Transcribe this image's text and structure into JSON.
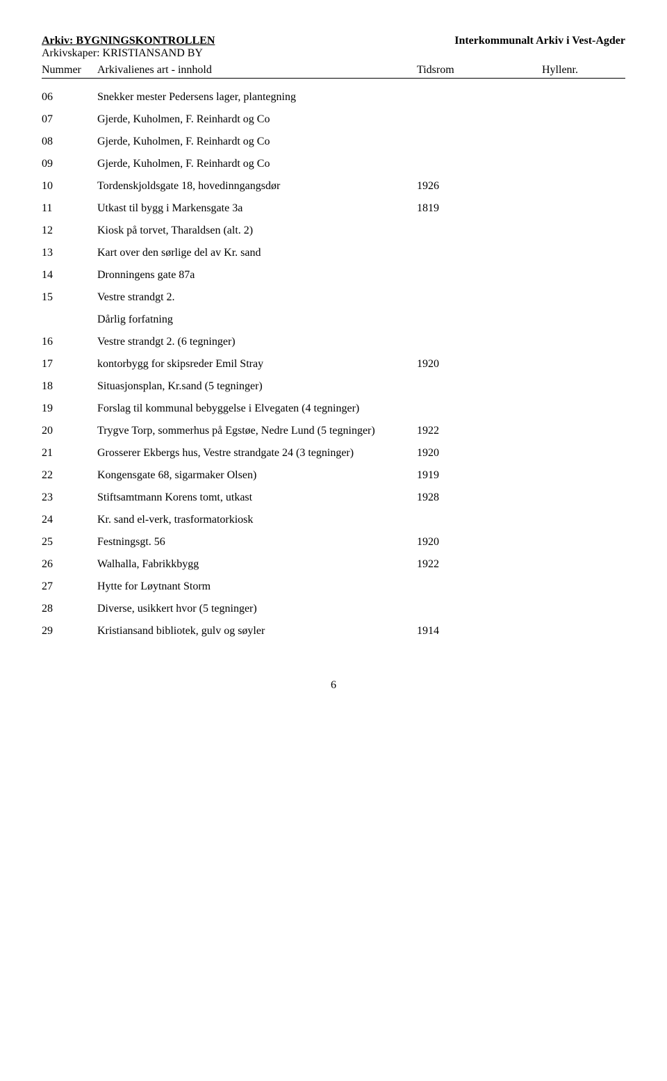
{
  "header": {
    "archive_label": "Arkiv:",
    "archive_value": "BYGNINGSKONTROLLEN",
    "creator_label": "Arkivskaper:",
    "creator_value": "KRISTIANSAND BY",
    "org": "Interkommunalt Arkiv i Vest-Agder"
  },
  "columns": {
    "nummer": "Nummer",
    "art": "Arkivalienes art - innhold",
    "tidsrom": "Tidsrom",
    "hyllenr": "Hyllenr."
  },
  "rows": [
    {
      "num": "06",
      "art": "Snekker mester Pedersens lager, plantegning",
      "tid": ""
    },
    {
      "num": "07",
      "art": "Gjerde, Kuholmen, F. Reinhardt og Co",
      "tid": ""
    },
    {
      "num": "08",
      "art": "Gjerde, Kuholmen, F. Reinhardt og Co",
      "tid": ""
    },
    {
      "num": "09",
      "art": "Gjerde, Kuholmen, F. Reinhardt og Co",
      "tid": ""
    },
    {
      "num": "10",
      "art": "Tordenskjoldsgate 18, hovedinngangsdør",
      "tid": "1926"
    },
    {
      "num": "11",
      "art": "Utkast til bygg i Markensgate 3a",
      "tid": "1819"
    },
    {
      "num": "12",
      "art": "Kiosk på torvet, Tharaldsen (alt. 2)",
      "tid": ""
    },
    {
      "num": "13",
      "art": "Kart over den sørlige del av Kr. sand",
      "tid": ""
    },
    {
      "num": "14",
      "art": "Dronningens gate 87a",
      "tid": ""
    },
    {
      "num": "15",
      "art": "Vestre strandgt 2.",
      "tid": ""
    },
    {
      "num": "",
      "art": "Dårlig forfatning",
      "tid": "",
      "note": true
    },
    {
      "num": "16",
      "art": "Vestre strandgt 2. (6 tegninger)",
      "tid": ""
    },
    {
      "num": "17",
      "art": "kontorbygg for skipsreder Emil Stray",
      "tid": "1920"
    },
    {
      "num": "18",
      "art": "Situasjonsplan, Kr.sand (5 tegninger)",
      "tid": ""
    },
    {
      "num": "19",
      "art": "Forslag til kommunal bebyggelse i Elvegaten (4 tegninger)",
      "tid": ""
    },
    {
      "num": "20",
      "art": "Trygve Torp, sommerhus på Egstøe, Nedre Lund (5 tegninger)",
      "tid": "1922"
    },
    {
      "num": "21",
      "art": "Grosserer Ekbergs hus, Vestre strandgate 24 (3 tegninger)",
      "tid": "1920"
    },
    {
      "num": "22",
      "art": "Kongensgate 68, sigarmaker Olsen)",
      "tid": "1919"
    },
    {
      "num": "23",
      "art": "Stiftsamtmann Korens tomt, utkast",
      "tid": "1928"
    },
    {
      "num": "24",
      "art": "Kr. sand el-verk, trasformatorkiosk",
      "tid": ""
    },
    {
      "num": "25",
      "art": "Festningsgt. 56",
      "tid": "1920"
    },
    {
      "num": "26",
      "art": "Walhalla, Fabrikkbygg",
      "tid": "1922"
    },
    {
      "num": "27",
      "art": "Hytte for Løytnant Storm",
      "tid": ""
    },
    {
      "num": "28",
      "art": "Diverse, usikkert hvor (5 tegninger)",
      "tid": ""
    },
    {
      "num": "29",
      "art": "Kristiansand bibliotek, gulv og søyler",
      "tid": "1914"
    }
  ],
  "page_number": "6"
}
